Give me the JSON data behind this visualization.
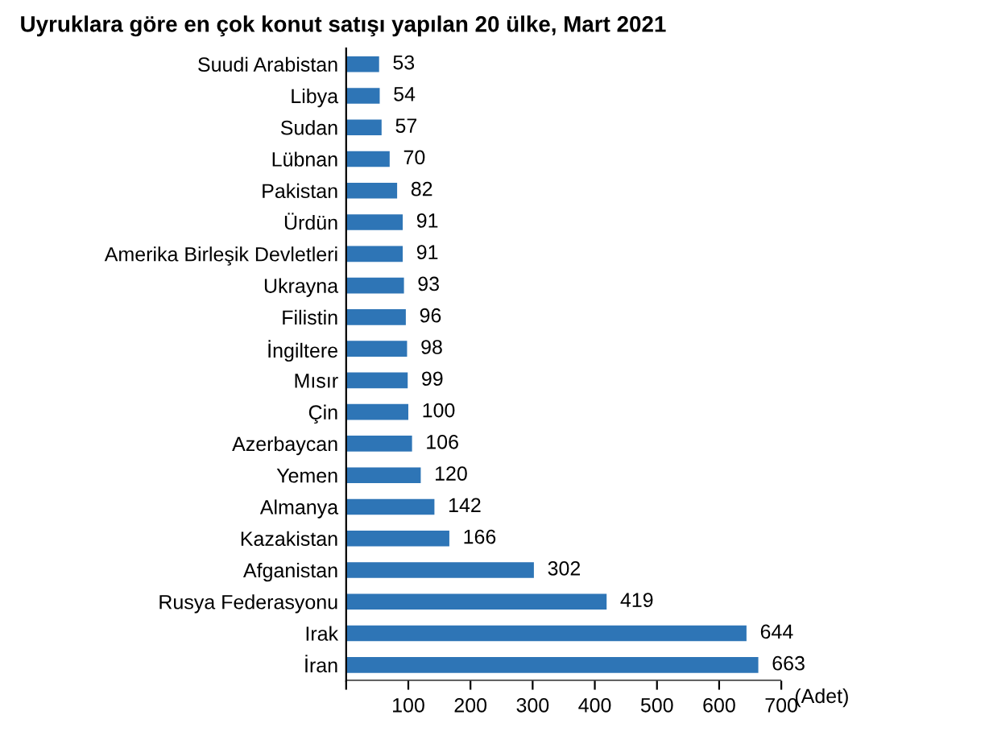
{
  "chart_data": {
    "type": "bar",
    "orientation": "horizontal",
    "title": "Uyruklara göre en çok konut satışı yapılan 20 ülke, Mart 2021",
    "xlabel": "(Adet)",
    "categories": [
      "Suudi Arabistan",
      "Libya",
      "Sudan",
      "Lübnan",
      "Pakistan",
      "Ürdün",
      "Amerika Birleşik Devletleri",
      "Ukrayna",
      "Filistin",
      "İngiltere",
      "Mısır",
      "Çin",
      "Azerbaycan",
      "Yemen",
      "Almanya",
      "Kazakistan",
      "Afganistan",
      "Rusya Federasyonu",
      "Irak",
      "İran"
    ],
    "values": [
      53,
      54,
      57,
      70,
      82,
      91,
      91,
      93,
      96,
      98,
      99,
      100,
      106,
      120,
      142,
      166,
      302,
      419,
      644,
      663
    ],
    "color": "#2e75b6",
    "data_labels": true,
    "grid": false,
    "legend": false,
    "xlim": [
      0,
      700
    ],
    "xticks": [
      {
        "value": 0,
        "label": null
      },
      100,
      200,
      300,
      400,
      500,
      600,
      700
    ]
  }
}
